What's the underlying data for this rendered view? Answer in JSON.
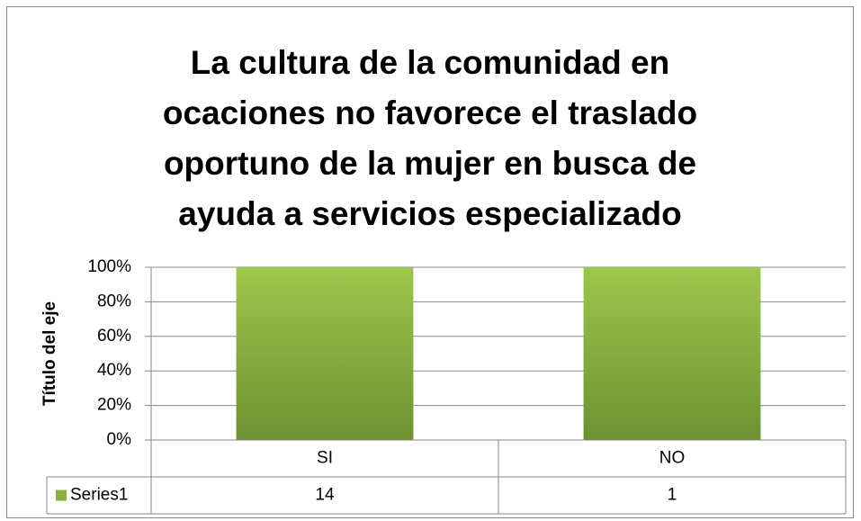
{
  "chart_data": {
    "type": "bar",
    "stacking": "percent",
    "title": [
      "La cultura de la comunidad en",
      "ocaciones no favorece el traslado",
      "oportuno de la mujer en busca de",
      "ayuda a servicios especializado"
    ],
    "y_label": "Título del eje",
    "categories": [
      "SI",
      "NO"
    ],
    "series": [
      {
        "name": "Series1",
        "color": "#8db13f",
        "values": [
          14,
          1
        ]
      }
    ],
    "ylim": [
      0,
      100
    ],
    "yticks": [
      {
        "value": 0,
        "label": "0%"
      },
      {
        "value": 20,
        "label": "20%"
      },
      {
        "value": 40,
        "label": "40%"
      },
      {
        "value": 60,
        "label": "60%"
      },
      {
        "value": 80,
        "label": "80%"
      },
      {
        "value": 100,
        "label": "100%"
      }
    ],
    "grid": true,
    "data_table": true
  }
}
